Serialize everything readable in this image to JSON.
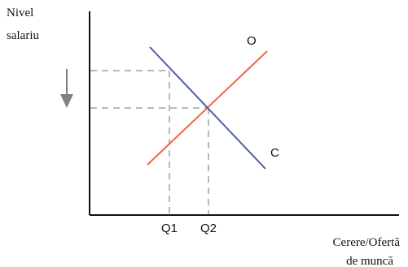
{
  "y_axis_label": [
    "Nivel",
    "salariu"
  ],
  "x_axis_label": [
    "Cerere/Ofertă",
    "de muncă"
  ],
  "ticks": {
    "q1": "Q1",
    "q2": "Q2"
  },
  "curves": {
    "supply": {
      "label": "O",
      "color": "#ee6644"
    },
    "demand": {
      "label": "C",
      "color": "#4f5aa8"
    }
  },
  "colors": {
    "axis": "#111111",
    "guide": "#a0a0a0",
    "arrow": "#808080"
  },
  "icons": {
    "wage_change": "arrow-down-icon"
  }
}
